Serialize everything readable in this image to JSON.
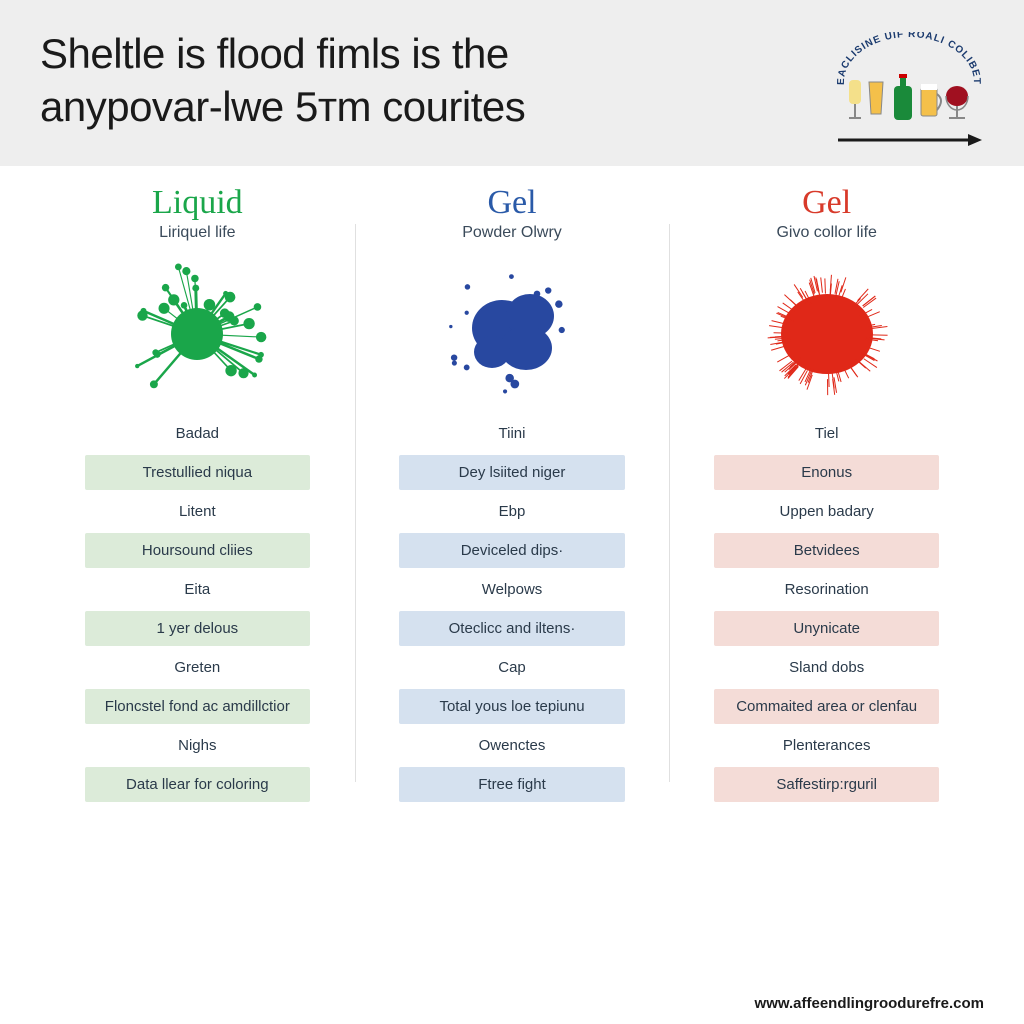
{
  "header": {
    "title_line1": "Sheltle is flood fimls is the",
    "title_line2": "anypovar-lwe 5ᴛm courites",
    "logo_text": "EACLISINE UIF ROALI COLIBET"
  },
  "columns": [
    {
      "title": "Liquid",
      "title_color": "#1aa64a",
      "subtitle": "Liriquel life",
      "splat_color": "#1aa64a",
      "splat_type": "spiky",
      "box_bg": "#dcebd9",
      "items": [
        {
          "text": "Badad",
          "boxed": false
        },
        {
          "text": "Trestullied niqua",
          "boxed": true
        },
        {
          "text": "Litent",
          "boxed": false
        },
        {
          "text": "Hoursound cliies",
          "boxed": true
        },
        {
          "text": "Eita",
          "boxed": false
        },
        {
          "text": "1 yer delous",
          "boxed": true
        },
        {
          "text": "Greten",
          "boxed": false
        },
        {
          "text": "Floncstel fond ac amdillctior",
          "boxed": true
        },
        {
          "text": "Nighs",
          "boxed": false
        },
        {
          "text": "Data llear for coloring",
          "boxed": true
        }
      ]
    },
    {
      "title": "Gel",
      "title_color": "#2a5aa8",
      "subtitle": "Powder Olwry",
      "splat_color": "#2848a0",
      "splat_type": "blob",
      "box_bg": "#d5e1ef",
      "items": [
        {
          "text": "Tiini",
          "boxed": false
        },
        {
          "text": "Dey lsiited niger",
          "boxed": true
        },
        {
          "text": "Ebp",
          "boxed": false
        },
        {
          "text": "Deviceled dips·",
          "boxed": true
        },
        {
          "text": "Welpows",
          "boxed": false
        },
        {
          "text": "Oteclicс and iltens·",
          "boxed": true
        },
        {
          "text": "Cap",
          "boxed": false
        },
        {
          "text": "Total yous loe tepiunu",
          "boxed": true
        },
        {
          "text": "Owenctes",
          "boxed": false
        },
        {
          "text": "Ftree fight",
          "boxed": true
        }
      ]
    },
    {
      "title": "Gel",
      "title_color": "#d83a2a",
      "subtitle": "Givo collor life",
      "splat_color": "#e02818",
      "splat_type": "fuzzy",
      "box_bg": "#f4dcd7",
      "items": [
        {
          "text": "Tiel",
          "boxed": false
        },
        {
          "text": "Enonus",
          "boxed": true
        },
        {
          "text": "Uppen badary",
          "boxed": false
        },
        {
          "text": "Betvidees",
          "boxed": true
        },
        {
          "text": "Resorination",
          "boxed": false
        },
        {
          "text": "Unynicate",
          "boxed": true
        },
        {
          "text": "Sland dobs",
          "boxed": false
        },
        {
          "text": "Commaited area or clenfau",
          "boxed": true
        },
        {
          "text": "Plenterances",
          "boxed": false
        },
        {
          "text": "Saffestirp:rguril",
          "boxed": true
        }
      ]
    }
  ],
  "footer_url": "www.affeendlingroodurefre.com"
}
